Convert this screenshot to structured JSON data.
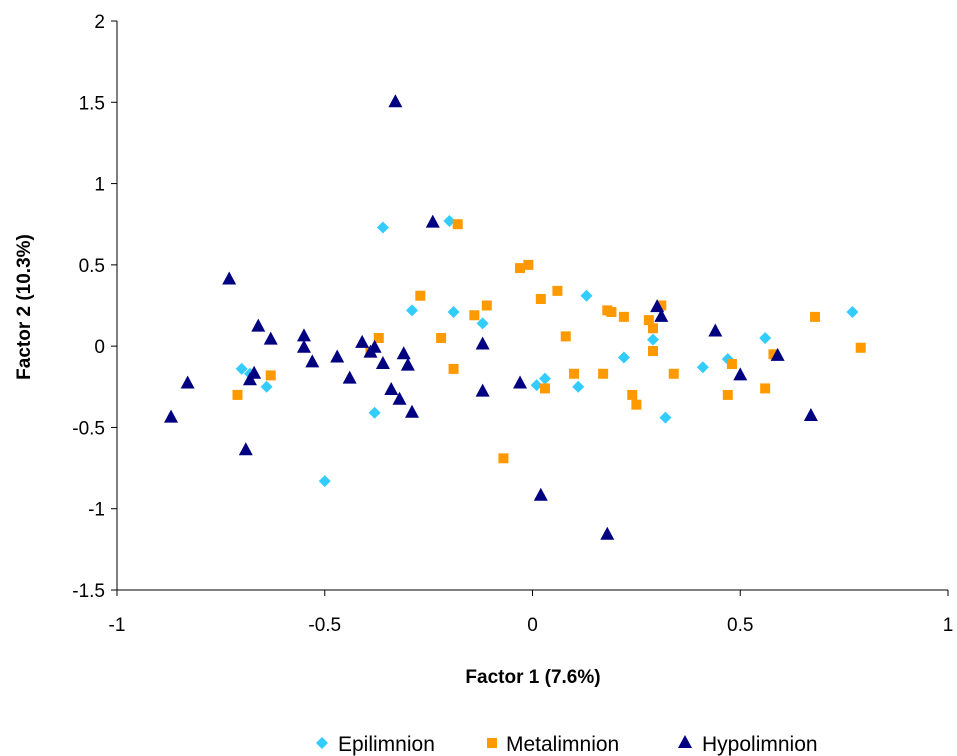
{
  "chart_data": {
    "type": "scatter",
    "xlabel": "Factor 1 (7.6%)",
    "ylabel": "Factor 2 (10.3%)",
    "xlim": [
      -1,
      1
    ],
    "ylim": [
      -1.5,
      2
    ],
    "x_ticks": [
      -1,
      -0.5,
      0,
      0.5,
      1
    ],
    "y_ticks": [
      -1.5,
      -1,
      -0.5,
      0,
      0.5,
      1,
      1.5,
      2
    ],
    "x_tick_labels": [
      "-1",
      "-0.5",
      "0",
      "0.5",
      "1"
    ],
    "y_tick_labels": [
      "-1.5",
      "-1",
      "-0.5",
      "0",
      "0.5",
      "1",
      "1.5",
      "2"
    ],
    "grid": false,
    "legend_position": "bottom",
    "series": [
      {
        "name": "Epilimnion",
        "marker": "diamond",
        "color": "#33CCFF",
        "points": [
          [
            -0.7,
            -0.14
          ],
          [
            -0.68,
            -0.17
          ],
          [
            -0.64,
            -0.25
          ],
          [
            -0.5,
            -0.83
          ],
          [
            -0.38,
            -0.41
          ],
          [
            -0.36,
            0.73
          ],
          [
            -0.29,
            0.22
          ],
          [
            -0.2,
            0.77
          ],
          [
            -0.19,
            0.21
          ],
          [
            -0.12,
            0.14
          ],
          [
            0.01,
            -0.24
          ],
          [
            0.03,
            -0.2
          ],
          [
            0.11,
            -0.25
          ],
          [
            0.13,
            0.31
          ],
          [
            0.22,
            -0.07
          ],
          [
            0.29,
            0.04
          ],
          [
            0.32,
            -0.44
          ],
          [
            0.41,
            -0.13
          ],
          [
            0.47,
            -0.08
          ],
          [
            0.56,
            0.05
          ],
          [
            0.77,
            0.21
          ]
        ]
      },
      {
        "name": "Metalimnion",
        "marker": "square",
        "color": "#FF9900",
        "points": [
          [
            -0.71,
            -0.3
          ],
          [
            -0.63,
            -0.18
          ],
          [
            -0.39,
            -0.04
          ],
          [
            -0.37,
            0.05
          ],
          [
            -0.27,
            0.31
          ],
          [
            -0.22,
            0.05
          ],
          [
            -0.19,
            -0.14
          ],
          [
            -0.18,
            0.75
          ],
          [
            -0.14,
            0.19
          ],
          [
            -0.11,
            0.25
          ],
          [
            -0.07,
            -0.69
          ],
          [
            -0.03,
            0.48
          ],
          [
            -0.01,
            0.5
          ],
          [
            0.02,
            0.29
          ],
          [
            0.03,
            -0.26
          ],
          [
            0.06,
            0.34
          ],
          [
            0.08,
            0.06
          ],
          [
            0.1,
            -0.17
          ],
          [
            0.17,
            -0.17
          ],
          [
            0.18,
            0.22
          ],
          [
            0.19,
            0.21
          ],
          [
            0.22,
            0.18
          ],
          [
            0.24,
            -0.3
          ],
          [
            0.25,
            -0.36
          ],
          [
            0.28,
            0.16
          ],
          [
            0.29,
            0.11
          ],
          [
            0.29,
            -0.03
          ],
          [
            0.31,
            0.25
          ],
          [
            0.34,
            -0.17
          ],
          [
            0.47,
            -0.3
          ],
          [
            0.48,
            -0.11
          ],
          [
            0.56,
            -0.26
          ],
          [
            0.58,
            -0.05
          ],
          [
            0.68,
            0.18
          ],
          [
            0.79,
            -0.01
          ]
        ]
      },
      {
        "name": "Hypolimnion",
        "marker": "triangle",
        "color": "#000080",
        "points": [
          [
            -0.87,
            -0.44
          ],
          [
            -0.83,
            -0.23
          ],
          [
            -0.73,
            0.41
          ],
          [
            -0.69,
            -0.64
          ],
          [
            -0.68,
            -0.21
          ],
          [
            -0.67,
            -0.17
          ],
          [
            -0.66,
            0.12
          ],
          [
            -0.63,
            0.04
          ],
          [
            -0.55,
            0.06
          ],
          [
            -0.55,
            -0.01
          ],
          [
            -0.53,
            -0.1
          ],
          [
            -0.47,
            -0.07
          ],
          [
            -0.44,
            -0.2
          ],
          [
            -0.41,
            0.02
          ],
          [
            -0.39,
            -0.04
          ],
          [
            -0.38,
            -0.01
          ],
          [
            -0.36,
            -0.11
          ],
          [
            -0.34,
            -0.27
          ],
          [
            -0.33,
            1.5
          ],
          [
            -0.32,
            -0.33
          ],
          [
            -0.31,
            -0.05
          ],
          [
            -0.3,
            -0.12
          ],
          [
            -0.29,
            -0.41
          ],
          [
            -0.24,
            0.76
          ],
          [
            -0.12,
            0.01
          ],
          [
            -0.12,
            -0.28
          ],
          [
            -0.03,
            -0.23
          ],
          [
            0.02,
            -0.92
          ],
          [
            0.18,
            -1.16
          ],
          [
            0.3,
            0.24
          ],
          [
            0.31,
            0.18
          ],
          [
            0.44,
            0.09
          ],
          [
            0.5,
            -0.18
          ],
          [
            0.59,
            -0.06
          ],
          [
            0.67,
            -0.43
          ]
        ]
      }
    ]
  }
}
